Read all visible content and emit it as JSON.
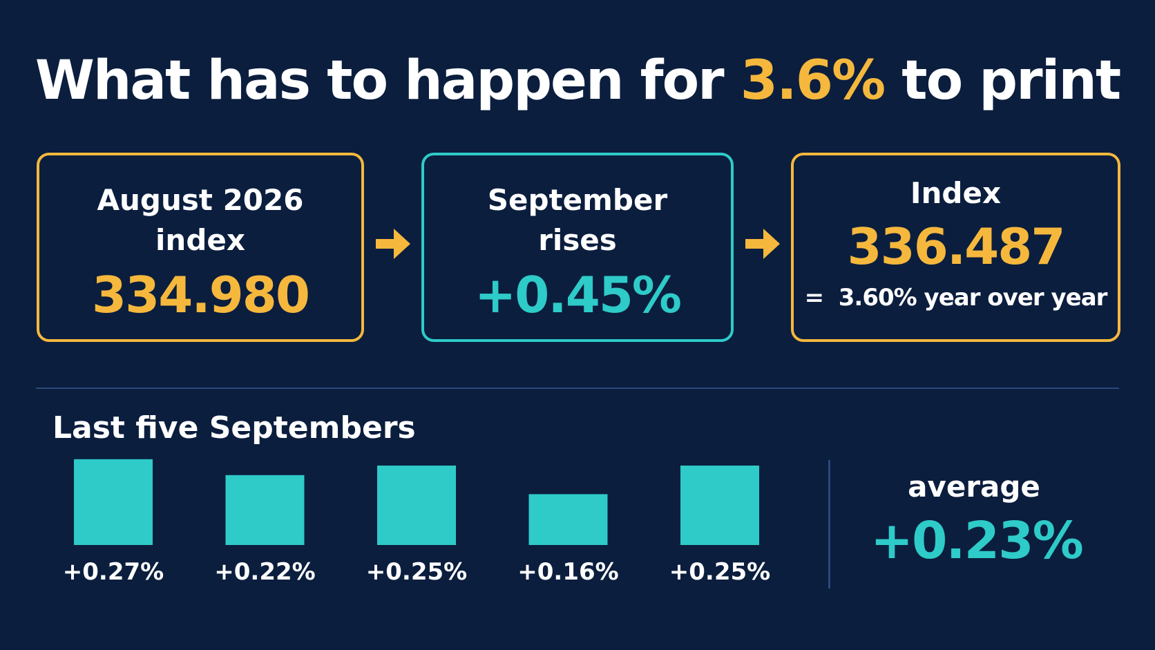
{
  "header": {
    "title_before": "What has to happen for ",
    "title_highlight": "3.6%",
    "title_after": " to print"
  },
  "cards": [
    {
      "label_line1": "August 2026",
      "label_line2": "index",
      "value": "334.980"
    },
    {
      "label_line1": "September",
      "label_line2": "rises",
      "value": "+0.45%"
    },
    {
      "label_line1": "Index",
      "value": "336.487",
      "note_prefix": "=",
      "note": "3.60% year over year"
    }
  ],
  "colors": {
    "background": "#0b1e3e",
    "gold": "#f5b83d",
    "teal": "#2ecbc8",
    "line": "#2a4a78"
  },
  "icons": [
    "arrow-right-icon",
    "arrow-right-icon"
  ],
  "chart_data": {
    "type": "bar",
    "title": "Last five Septembers",
    "categories": [],
    "values": [
      0.27,
      0.22,
      0.25,
      0.16,
      0.25
    ],
    "labels": [
      "+0.27%",
      "+0.22%",
      "+0.25%",
      "+0.16%",
      "+0.25%"
    ],
    "ylim": [
      0,
      0.3
    ],
    "grid": false,
    "color": "#2ecbc8"
  },
  "summary": {
    "label": "average",
    "value": "+0.23%"
  }
}
